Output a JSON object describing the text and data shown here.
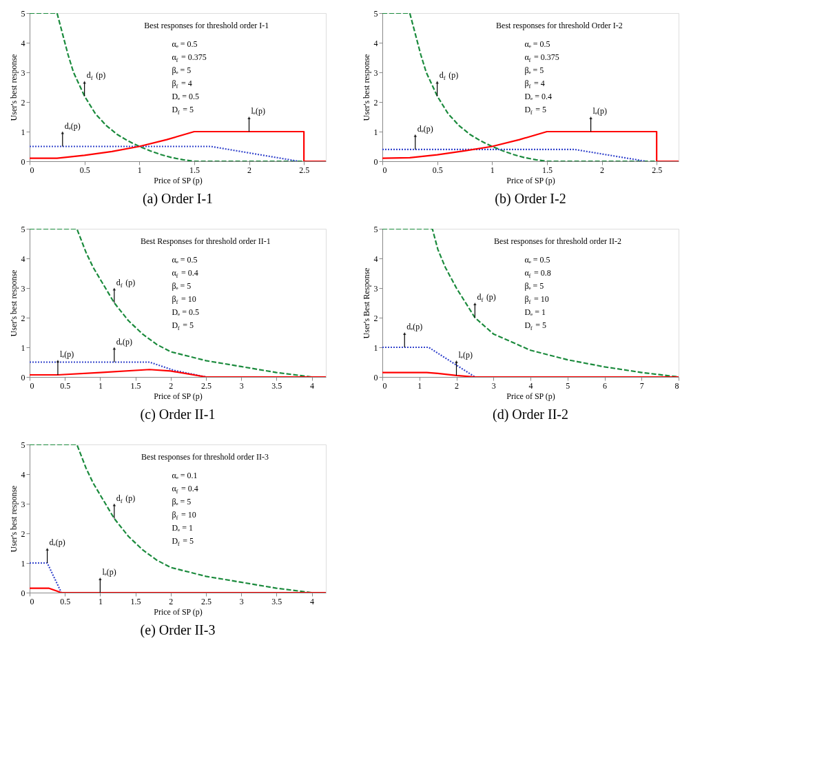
{
  "chart_data": [
    {
      "type": "line",
      "title": "(a) Order I-1",
      "xlabel": "Price of SP (p)",
      "ylabel": "User's best response",
      "xlim": [
        0,
        2.7
      ],
      "xticks": [
        0,
        0.5,
        1,
        1.5,
        2,
        2.5
      ],
      "ylim": [
        0,
        5
      ],
      "yticks": [
        0,
        1,
        2,
        3,
        4,
        5
      ],
      "annotations": [
        "Best responses for threshold order I-1",
        "αₑ = 0.5",
        "α$_{f}$ = 0.375",
        "βₑ = 5",
        "β$_{f}$ = 4",
        "Dₑ = 0.5",
        "D$_{f}$ = 5",
        {
          "text": "d$_{f}$(p)",
          "x": 0.5,
          "y": 2.2
        },
        {
          "text": "dₑ(p)",
          "x": 0.3,
          "y": 0.5
        },
        {
          "text": "lₑ(p)",
          "x": 2,
          "y": 1
        }
      ],
      "series": [
        {
          "color": "#1a8a3c",
          "line_style": "dashed",
          "x": [
            0,
            0.25,
            0.3,
            0.35,
            0.4,
            0.5,
            0.6,
            0.7,
            0.8,
            0.9,
            1.0,
            1.1,
            1.2,
            1.3,
            1.4,
            1.5,
            2.5
          ],
          "values": [
            5,
            5,
            4.3,
            3.6,
            3.0,
            2.2,
            1.6,
            1.2,
            0.9,
            0.68,
            0.5,
            0.35,
            0.22,
            0.12,
            0.05,
            0,
            0
          ]
        },
        {
          "color": "#3344cc",
          "line_style": "dotted",
          "x": [
            0,
            1.65,
            2.45
          ],
          "values": [
            0.5,
            0.5,
            0
          ]
        },
        {
          "color": "#ff0000",
          "line_style": "solid",
          "x": [
            0,
            0.25,
            0.5,
            0.75,
            1,
            1.25,
            1.5,
            2.5,
            2.5,
            2.7
          ],
          "values": [
            0.1,
            0.1,
            0.2,
            0.33,
            0.5,
            0.73,
            1,
            1,
            0,
            0
          ]
        }
      ]
    },
    {
      "type": "line",
      "title": "(b) Order I-2",
      "xlabel": "Price of SP (p)",
      "ylabel": "User's best response",
      "xlim": [
        0,
        2.7
      ],
      "xticks": [
        0,
        0.5,
        1,
        1.5,
        2,
        2.5
      ],
      "ylim": [
        0,
        5
      ],
      "yticks": [
        0,
        1,
        2,
        3,
        4,
        5
      ],
      "annotations": [
        "Best responses for threshold Order I-2",
        "αₑ = 0.5",
        "α$_{f}$ = 0.375",
        "βₑ = 5",
        "β$_{f}$ = 4",
        "Dₑ = 0.4",
        "D$_{f}$ = 5",
        {
          "text": "d$_{f}$(p)",
          "x": 0.5,
          "y": 2.2
        },
        {
          "text": "dₑ(p)",
          "x": 0.3,
          "y": 0.4
        },
        {
          "text": "lₑ(p)",
          "x": 1.9,
          "y": 1
        }
      ],
      "series": [
        {
          "color": "#1a8a3c",
          "line_style": "dashed",
          "x": [
            0,
            0.25,
            0.3,
            0.35,
            0.4,
            0.5,
            0.6,
            0.7,
            0.8,
            0.9,
            1.0,
            1.1,
            1.2,
            1.3,
            1.4,
            1.5,
            2.5
          ],
          "values": [
            5,
            5,
            4.3,
            3.6,
            3.0,
            2.2,
            1.6,
            1.2,
            0.9,
            0.68,
            0.5,
            0.35,
            0.22,
            0.12,
            0.05,
            0,
            0
          ]
        },
        {
          "color": "#3344cc",
          "line_style": "dotted",
          "x": [
            0,
            1.75,
            2.4
          ],
          "values": [
            0.4,
            0.4,
            0
          ]
        },
        {
          "color": "#ff0000",
          "line_style": "solid",
          "x": [
            0,
            0.25,
            0.5,
            0.75,
            1,
            1.25,
            1.5,
            2.5,
            2.5,
            2.7
          ],
          "values": [
            0.1,
            0.12,
            0.22,
            0.35,
            0.5,
            0.73,
            1,
            1,
            0,
            0
          ]
        }
      ]
    },
    {
      "type": "line",
      "title": "(c) Order II-1",
      "xlabel": "Price of SP (p)",
      "ylabel": "User's best response",
      "xlim": [
        0,
        4.2
      ],
      "xticks": [
        0,
        0.5,
        1,
        1.5,
        2,
        2.5,
        3,
        3.5,
        4
      ],
      "ylim": [
        0,
        5
      ],
      "yticks": [
        0,
        1,
        2,
        3,
        4,
        5
      ],
      "annotations": [
        "Best Responses for threshold order II-1",
        "αₑ = 0.5",
        "α$_{f}$ = 0.4",
        "βₑ = 5",
        "β$_{f}$ = 10",
        "Dₑ = 0.5",
        "D$_{f}$ = 5",
        {
          "text": "d$_{f}$(p)",
          "x": 1.2,
          "y": 2.5
        },
        {
          "text": "lₑ(p)",
          "x": 0.4,
          "y": 0.07
        },
        {
          "text": "dₑ(p)",
          "x": 1.2,
          "y": 0.5
        }
      ],
      "series": [
        {
          "color": "#1a8a3c",
          "line_style": "dashed",
          "x": [
            0,
            0.67,
            0.8,
            0.9,
            1,
            1.2,
            1.4,
            1.6,
            1.8,
            2,
            2.5,
            3,
            3.5,
            4
          ],
          "values": [
            5,
            5,
            4.2,
            3.7,
            3.3,
            2.5,
            1.9,
            1.45,
            1.1,
            0.85,
            0.55,
            0.35,
            0.15,
            0
          ]
        },
        {
          "color": "#3344cc",
          "line_style": "dotted",
          "x": [
            0,
            1.7,
            2.05,
            2.5
          ],
          "values": [
            0.5,
            0.5,
            0.22,
            0
          ]
        },
        {
          "color": "#ff0000",
          "line_style": "solid",
          "x": [
            0,
            0.4,
            1,
            1.7,
            2,
            2.5,
            4.2
          ],
          "values": [
            0.07,
            0.07,
            0.15,
            0.25,
            0.2,
            0,
            0
          ]
        }
      ]
    },
    {
      "type": "line",
      "title": "(d) Order II-2",
      "xlabel": "Price of SP (p)",
      "ylabel": "User's Best Response",
      "xlim": [
        0,
        8
      ],
      "xticks": [
        0,
        1,
        2,
        3,
        4,
        5,
        6,
        7,
        8
      ],
      "ylim": [
        0,
        5
      ],
      "yticks": [
        0,
        1,
        2,
        3,
        4,
        5
      ],
      "annotations": [
        "Best responses for threshold order II-2",
        "αₑ = 0.5",
        "α$_{f}$ = 0.8",
        "βₑ = 5",
        "β$_{f}$ = 10",
        "Dₑ = 1",
        "D$_{f}$ = 5",
        {
          "text": "d$_{f}$(p)",
          "x": 2.5,
          "y": 2.0
        },
        {
          "text": "dₑ(p)",
          "x": 0.6,
          "y": 1
        },
        {
          "text": "lₑ(p)",
          "x": 2,
          "y": 0.05
        }
      ],
      "series": [
        {
          "color": "#1a8a3c",
          "line_style": "dashed",
          "x": [
            0,
            1.35,
            1.5,
            1.7,
            2,
            2.5,
            3,
            4,
            5,
            6,
            7,
            8
          ],
          "values": [
            5,
            5,
            4.3,
            3.7,
            3.0,
            2.0,
            1.45,
            0.9,
            0.58,
            0.34,
            0.15,
            0
          ]
        },
        {
          "color": "#3344cc",
          "line_style": "dotted",
          "x": [
            0,
            1.25,
            2.5
          ],
          "values": [
            1,
            1,
            0
          ]
        },
        {
          "color": "#ff0000",
          "line_style": "solid",
          "x": [
            0,
            1.2,
            1.5,
            2,
            2.5,
            8
          ],
          "values": [
            0.15,
            0.15,
            0.12,
            0.05,
            0,
            0
          ]
        }
      ]
    },
    {
      "type": "line",
      "title": "(e) Order II-3",
      "xlabel": "Price of SP (p)",
      "ylabel": "User's best response",
      "xlim": [
        0,
        4.2
      ],
      "xticks": [
        0,
        0.5,
        1,
        1.5,
        2,
        2.5,
        3,
        3.5,
        4
      ],
      "ylim": [
        0,
        5
      ],
      "yticks": [
        0,
        1,
        2,
        3,
        4,
        5
      ],
      "annotations": [
        "Best responses for threshold order II-3",
        "αₑ = 0.1",
        "α$_{f}$ = 0.4",
        "βₑ = 5",
        "β$_{f}$ = 10",
        "Dₑ = 1",
        "D$_{f}$ = 5",
        {
          "text": "d$_{f}$(p)",
          "x": 1.2,
          "y": 2.5
        },
        {
          "text": "dₑ(p)",
          "x": 0.25,
          "y": 1
        },
        {
          "text": "lₑ(p)",
          "x": 1,
          "y": 0
        }
      ],
      "series": [
        {
          "color": "#1a8a3c",
          "line_style": "dashed",
          "x": [
            0,
            0.67,
            0.8,
            0.9,
            1,
            1.2,
            1.4,
            1.6,
            1.8,
            2,
            2.5,
            3,
            3.5,
            4
          ],
          "values": [
            5,
            5,
            4.2,
            3.7,
            3.3,
            2.5,
            1.9,
            1.45,
            1.1,
            0.85,
            0.55,
            0.35,
            0.15,
            0
          ]
        },
        {
          "color": "#3344cc",
          "line_style": "dotted",
          "x": [
            0,
            0.25,
            0.45
          ],
          "values": [
            1,
            1,
            0
          ]
        },
        {
          "color": "#ff0000",
          "line_style": "solid",
          "x": [
            0,
            0.27,
            0.45,
            4.2
          ],
          "values": [
            0.15,
            0.15,
            0,
            0
          ]
        }
      ]
    }
  ]
}
